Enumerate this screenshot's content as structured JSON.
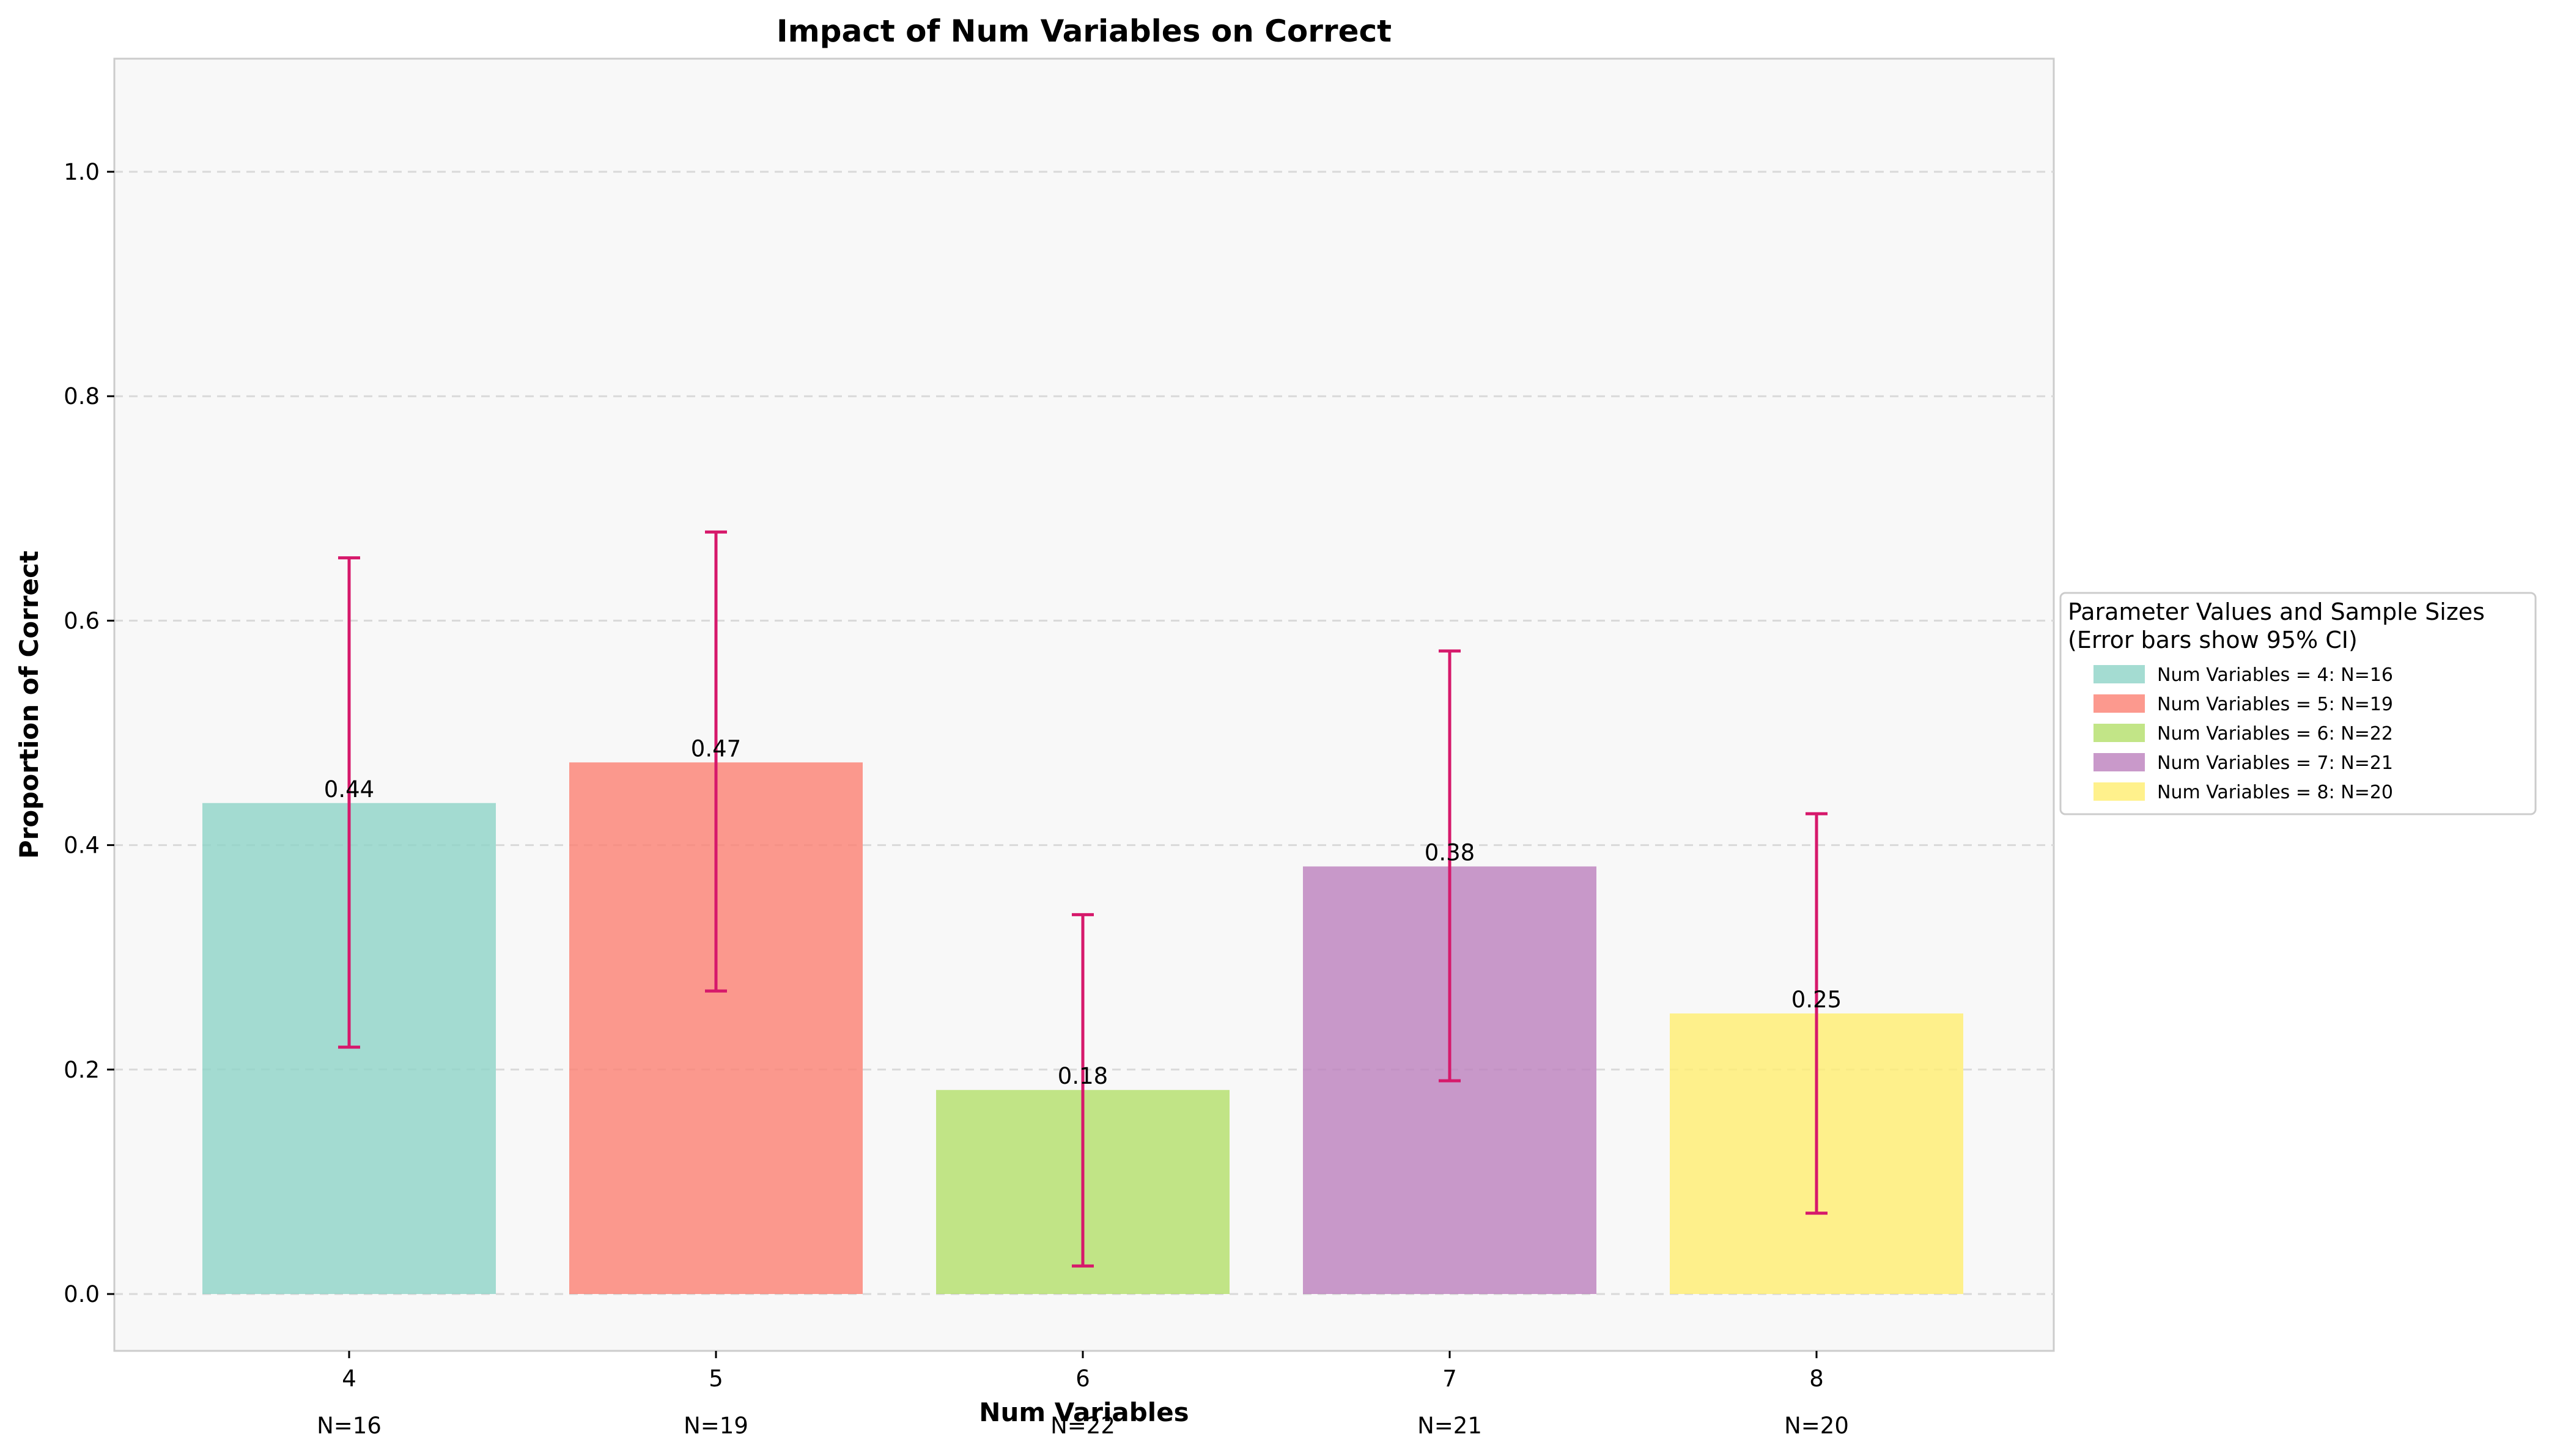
{
  "chart_data": {
    "type": "bar",
    "title": "Impact of Num Variables on Correct",
    "xlabel": "Num Variables",
    "ylabel": "Proportion of Correct",
    "categories": [
      "4",
      "5",
      "6",
      "7",
      "8"
    ],
    "values": [
      0.4375,
      0.4737,
      0.1818,
      0.381,
      0.25
    ],
    "data_labels": [
      "0.44",
      "0.47",
      "0.18",
      "0.38",
      "0.25"
    ],
    "ci_lower": [
      0.22,
      0.27,
      0.025,
      0.19,
      0.072
    ],
    "ci_upper": [
      0.656,
      0.679,
      0.338,
      0.573,
      0.428
    ],
    "sample_labels": [
      "N=16",
      "N=19",
      "N=22",
      "N=21",
      "N=20"
    ],
    "colors": [
      "#8dd3c7",
      "#fb8072",
      "#b3de69",
      "#bc80bd",
      "#ffed6f"
    ],
    "error_bar_color": "#d6196b",
    "yticks": [
      "0.0",
      "0.2",
      "0.4",
      "0.6",
      "0.8",
      "1.0"
    ],
    "ylim": [
      -0.05,
      1.1
    ],
    "grid": true,
    "legend": {
      "placement": "right",
      "title_line1": "Parameter Values and Sample Sizes",
      "title_line2": "(Error bars show 95% CI)",
      "entries": [
        "Num Variables = 4: N=16",
        "Num Variables = 5: N=19",
        "Num Variables = 6: N=22",
        "Num Variables = 7: N=21",
        "Num Variables = 8: N=20"
      ]
    }
  }
}
